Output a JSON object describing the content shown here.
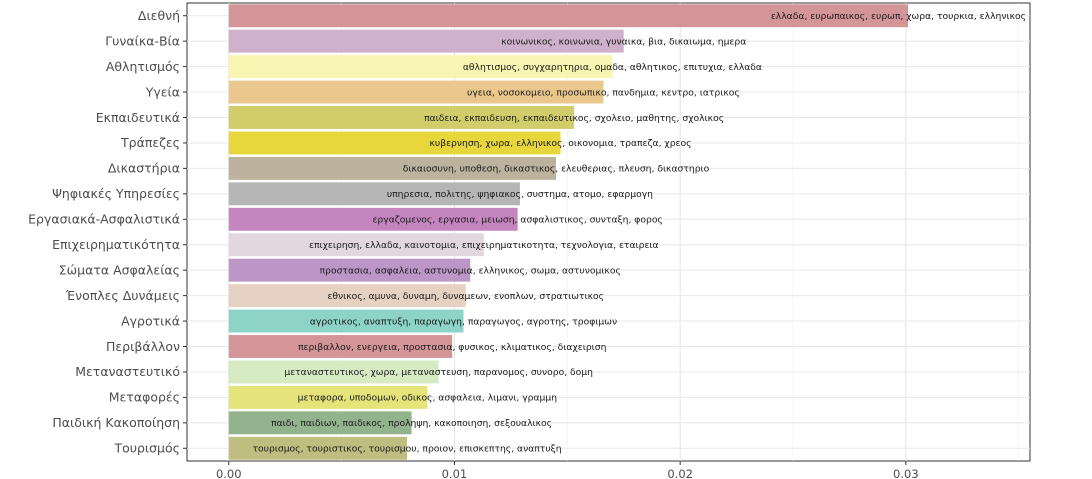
{
  "chart_data": {
    "type": "bar",
    "orientation": "horizontal",
    "title": "",
    "xlabel": "",
    "ylabel": "",
    "xlim": [
      -0.00185,
      0.0355
    ],
    "x_ticks": [
      0.0,
      0.01,
      0.02,
      0.03
    ],
    "x_tick_labels": [
      "0.00",
      "0.01",
      "0.02",
      "0.03"
    ],
    "grid": true,
    "legend": "none",
    "bars": [
      {
        "category": "Διεθνή",
        "value": 0.0301,
        "color": "#d49598",
        "terms": "ελλαδα, ευρωπαικος, ευρωπ, χωρα, τουρκια, ελληνικος"
      },
      {
        "category": "Γυναίκα-Βία",
        "value": 0.0175,
        "color": "#cfb1cc",
        "terms": "κοινωνικος, κοινωνια, γυναικα, βια, δικαιωμα, ημερα"
      },
      {
        "category": "Αθλητισμός",
        "value": 0.017,
        "color": "#f8f4b2",
        "terms": "αθλητισμος, συγχαρητηρια, ομαδα, αθλητικος, επιτυχια, ελλαδα"
      },
      {
        "category": "Υγεία",
        "value": 0.0166,
        "color": "#eac78d",
        "terms": "υγεια, νοσοκομειο, προσωπικο, πανδημια, κεντρο, ιατρικος"
      },
      {
        "category": "Εκπαιδευτικά",
        "value": 0.0153,
        "color": "#d1cd6b",
        "terms": "παιδεια, εκπαιδευση, εκπαιδευτικος, σχολειο, μαθητης, σχολικος"
      },
      {
        "category": "Τράπεζες",
        "value": 0.0147,
        "color": "#e8d73c",
        "terms": "κυβερνηση, χωρα, ελληνικος, οικονομια, τραπεζα, χρεος"
      },
      {
        "category": "Δικαστήρια",
        "value": 0.0145,
        "color": "#bcb29d",
        "terms": "δικαιοσυνη, υποθεση, δικαστικος, ελευθεριας, πλευση, δικαστηριο"
      },
      {
        "category": "Ψηφιακές Υπηρεσίες",
        "value": 0.0129,
        "color": "#b5b5b5",
        "terms": "υπηρεσια, πολιτης, ψηφιακος, συστημα, ατομο, εφαρμογη"
      },
      {
        "category": "Εργασιακά-Ασφαλιστικά",
        "value": 0.0128,
        "color": "#c586c0",
        "terms": "εργαζομενος, εργασια, μειωση, ασφαλιστικος, συνταξη, φορος"
      },
      {
        "category": "Επιχειρηματικότητα",
        "value": 0.0113,
        "color": "#e1d7dd",
        "terms": "επιχειρηση, ελλαδα, καινοτομια, επιχειρηματικοτητα, τεχνολογια, εταιρεια"
      },
      {
        "category": "Σώματα Ασφαλείας",
        "value": 0.0107,
        "color": "#bd96c8",
        "terms": "προστασια, ασφαλεια, αστυνομια, ελληνικος, σωμα, αστυνομικος"
      },
      {
        "category": "Ένοπλες Δυνάμεις",
        "value": 0.0105,
        "color": "#e7d1c3",
        "terms": "εθνικος, αμυνα, δυναμη, δυναμεων, ενοπλων, στρατιωτικος"
      },
      {
        "category": "Αγροτικά",
        "value": 0.0104,
        "color": "#8ed3c7",
        "terms": "αγροτικος, αναπτυξη, παραγωγη, παραγωγος, αγροτης, τροφιμων"
      },
      {
        "category": "Περιβάλλον",
        "value": 0.0099,
        "color": "#d49598",
        "terms": "περιβαλλον, ενεργεια, προστασια, φυσικος, κλιματικος, διαχειριση"
      },
      {
        "category": "Μεταναστευτικό",
        "value": 0.0093,
        "color": "#d6ebc3",
        "terms": "μεταναστευτικος, χωρα, μεταναστευση, παρανομος, συνορο, δομη"
      },
      {
        "category": "Μεταφορές",
        "value": 0.0088,
        "color": "#e5e47a",
        "terms": "μεταφορα, υποδομων, οδικος, ασφαλεια, λιμανι, γραμμη"
      },
      {
        "category": "Παιδική Κακοποίηση",
        "value": 0.0081,
        "color": "#93b38e",
        "terms": "παιδι, παιδιων, παιδικος, προληψη, κακοποιηση, σεξουαλικος"
      },
      {
        "category": "Τουρισμός",
        "value": 0.0079,
        "color": "#bfbd80",
        "terms": "τουρισμος, τουριστικος, τουρισμου, προιον, επισκεπτης, αναπτυξη"
      }
    ]
  }
}
